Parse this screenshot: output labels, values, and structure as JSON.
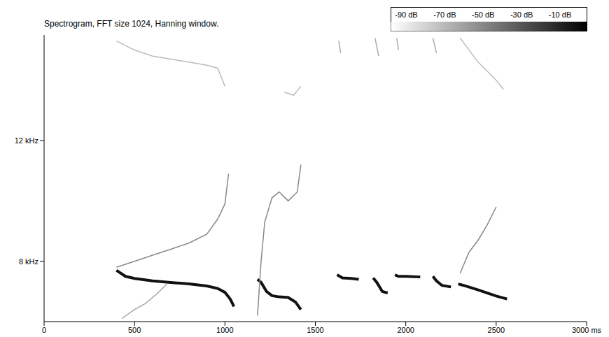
{
  "chart_data": {
    "type": "line",
    "title": "Spectrogram, FFT size 1024, Hanning window.",
    "xlim": [
      0,
      3000
    ],
    "xticks": [
      0,
      500,
      1000,
      1500,
      2000,
      2500,
      {
        "value": 3000,
        "label": "3000 ms"
      }
    ],
    "ylim": [
      6,
      15.5
    ],
    "yticks": [
      {
        "value": 8,
        "label": "8 kHz"
      },
      {
        "value": 12,
        "label": "12 kHz"
      }
    ],
    "grid": false,
    "colorbar": {
      "range": [
        -98,
        4
      ],
      "ticks": [
        {
          "value": -90,
          "label": "-90 dB"
        },
        {
          "value": -70,
          "label": "-70 dB"
        },
        {
          "value": -50,
          "label": "-50 dB"
        },
        {
          "value": -30,
          "label": "-30 dB"
        },
        {
          "value": -10,
          "label": "-10 dB"
        }
      ]
    },
    "series": [
      {
        "color": "#111111",
        "line_style": "bold",
        "x": [
          400,
          450,
          500,
          600,
          700,
          800,
          900,
          960,
          1000,
          1030,
          1050,
          1100,
          1180,
          1200,
          1230,
          1260,
          1300,
          1350,
          1390,
          1420,
          1500,
          1620,
          1650,
          1700,
          1740,
          1780,
          1820,
          1840,
          1870,
          1900,
          1920,
          1940,
          1960,
          2000,
          2080,
          2120,
          2150,
          2170,
          2200,
          2250,
          2270,
          2290,
          2320,
          2400,
          2500,
          2560
        ],
        "values": [
          7.7,
          7.5,
          7.43,
          7.35,
          7.3,
          7.25,
          7.18,
          7.1,
          6.97,
          6.74,
          6.5,
          null,
          7.4,
          7.3,
          7.0,
          6.86,
          6.82,
          6.8,
          6.65,
          6.4,
          null,
          7.55,
          7.45,
          7.43,
          7.4,
          null,
          7.45,
          7.3,
          7.0,
          6.95,
          null,
          7.55,
          7.5,
          7.5,
          7.48,
          null,
          7.5,
          7.35,
          7.2,
          7.15,
          null,
          7.25,
          7.2,
          7.05,
          6.85,
          6.75
        ]
      },
      {
        "color": "#888888",
        "line_style": "solid",
        "x": [
          400,
          500,
          600,
          700,
          800,
          900,
          960,
          1000,
          1020,
          1100,
          1180,
          1200,
          1220,
          1260,
          1300,
          1350,
          1400,
          1420,
          1500,
          2300,
          2350,
          2400,
          2450,
          2500
        ],
        "values": [
          7.8,
          8.0,
          8.2,
          8.4,
          8.6,
          8.9,
          9.4,
          9.9,
          10.9,
          null,
          6.2,
          8.0,
          9.3,
          10.1,
          10.3,
          10.0,
          10.3,
          11.2,
          null,
          7.6,
          8.3,
          8.7,
          9.2,
          9.8
        ]
      },
      {
        "color": "#aaaaaa",
        "line_style": "solid",
        "x": [
          430,
          500,
          560,
          620,
          680
        ],
        "values": [
          6.1,
          6.4,
          6.6,
          6.9,
          7.25
        ]
      },
      {
        "color": "#bbbbbb",
        "line_style": "solid",
        "x": [
          400,
          500,
          600,
          700,
          800,
          900,
          960,
          1000,
          1100,
          1330,
          1380,
          1420,
          1500,
          2300,
          2350,
          2400,
          2450,
          2500,
          2540
        ],
        "values": [
          15.3,
          15.0,
          14.8,
          14.7,
          14.6,
          14.5,
          14.4,
          13.8,
          null,
          13.6,
          13.5,
          13.8,
          null,
          15.4,
          15.0,
          14.6,
          14.3,
          14.0,
          13.7
        ]
      },
      {
        "color": "#aaaaaa",
        "line_style": "solid",
        "x": [
          1630,
          1640,
          1700,
          1830,
          1850,
          1900,
          1950,
          1960,
          2050,
          2150,
          2170
        ],
        "values": [
          15.3,
          14.9,
          null,
          15.4,
          14.8,
          null,
          15.4,
          15.0,
          null,
          15.4,
          14.9
        ]
      }
    ]
  }
}
